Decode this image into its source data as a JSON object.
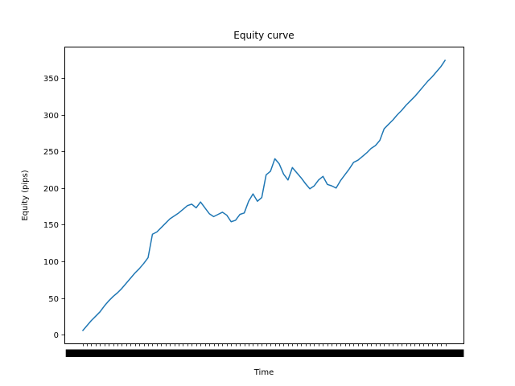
{
  "chart_data": {
    "type": "line",
    "title": "Equity curve",
    "xlabel": "Time",
    "ylabel": "Equity (pips)",
    "ylim": [
      -12,
      393
    ],
    "yticks": [
      0,
      50,
      100,
      150,
      200,
      250,
      300,
      350
    ],
    "grid": false,
    "legend": "none",
    "x_tick_labels_unreadable": true,
    "series": [
      {
        "color": "#1f77b4",
        "values": [
          5,
          12,
          19,
          25,
          31,
          39,
          46,
          52,
          57,
          63,
          70,
          77,
          84,
          90,
          97,
          105,
          137,
          140,
          146,
          152,
          158,
          162,
          166,
          171,
          176,
          178,
          173,
          181,
          173,
          165,
          161,
          164,
          167,
          163,
          154,
          156,
          164,
          166,
          182,
          192,
          182,
          187,
          218,
          223,
          240,
          233,
          219,
          211,
          228,
          221,
          214,
          206,
          199,
          203,
          211,
          216,
          205,
          203,
          200,
          210,
          218,
          226,
          235,
          238,
          243,
          248,
          254,
          258,
          265,
          281,
          287,
          293,
          300,
          306,
          313,
          319,
          325,
          332,
          339,
          346,
          352,
          359,
          366,
          375
        ]
      }
    ]
  }
}
